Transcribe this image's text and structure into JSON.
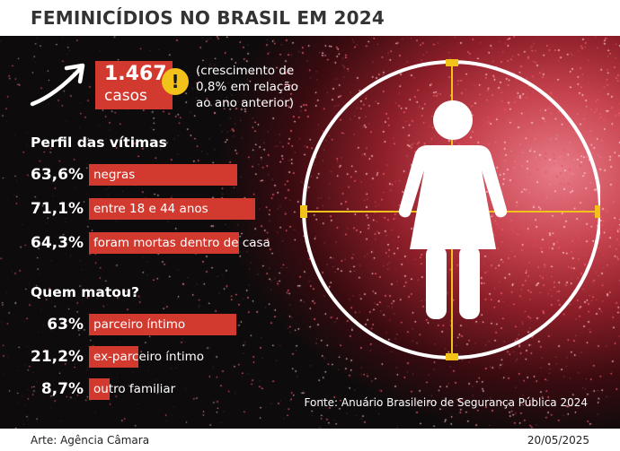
{
  "title": "FEMINICÍDIOS NO BRASIL EM 2024",
  "highlight": {
    "value": "1.467",
    "unit": "casos",
    "note_icon": "exclamation-icon",
    "note": "(crescimento de 0,8% em relação ao ano anterior)"
  },
  "source": "Fonte: Anuário Brasileiro de Segurança Pública 2024",
  "footer": {
    "credit": "Arte: Agência Câmara",
    "date": "20/05/2025"
  },
  "colors": {
    "bar": "#d33a2f",
    "warning": "#f2c21b",
    "crosshair": "#f2c21b",
    "background": "#0d0b0c",
    "glow": "#c7434f"
  },
  "chart_data": [
    {
      "type": "bar",
      "title": "Perfil das vítimas",
      "categories": [
        "negras",
        "entre 18 e 44 anos",
        "foram mortas dentro de casa"
      ],
      "values": [
        63.6,
        71.1,
        64.3
      ],
      "value_labels": [
        "63,6%",
        "71,1%",
        "64,3%"
      ],
      "unit": "%",
      "ylim": [
        0,
        100
      ]
    },
    {
      "type": "bar",
      "title": "Quem matou?",
      "categories": [
        "parceiro íntimo",
        "ex-parceiro íntimo",
        "outro familiar"
      ],
      "values": [
        63,
        21.2,
        8.7
      ],
      "value_labels": [
        "63%",
        "21,2%",
        "8,7%"
      ],
      "unit": "%",
      "ylim": [
        0,
        100
      ]
    }
  ]
}
